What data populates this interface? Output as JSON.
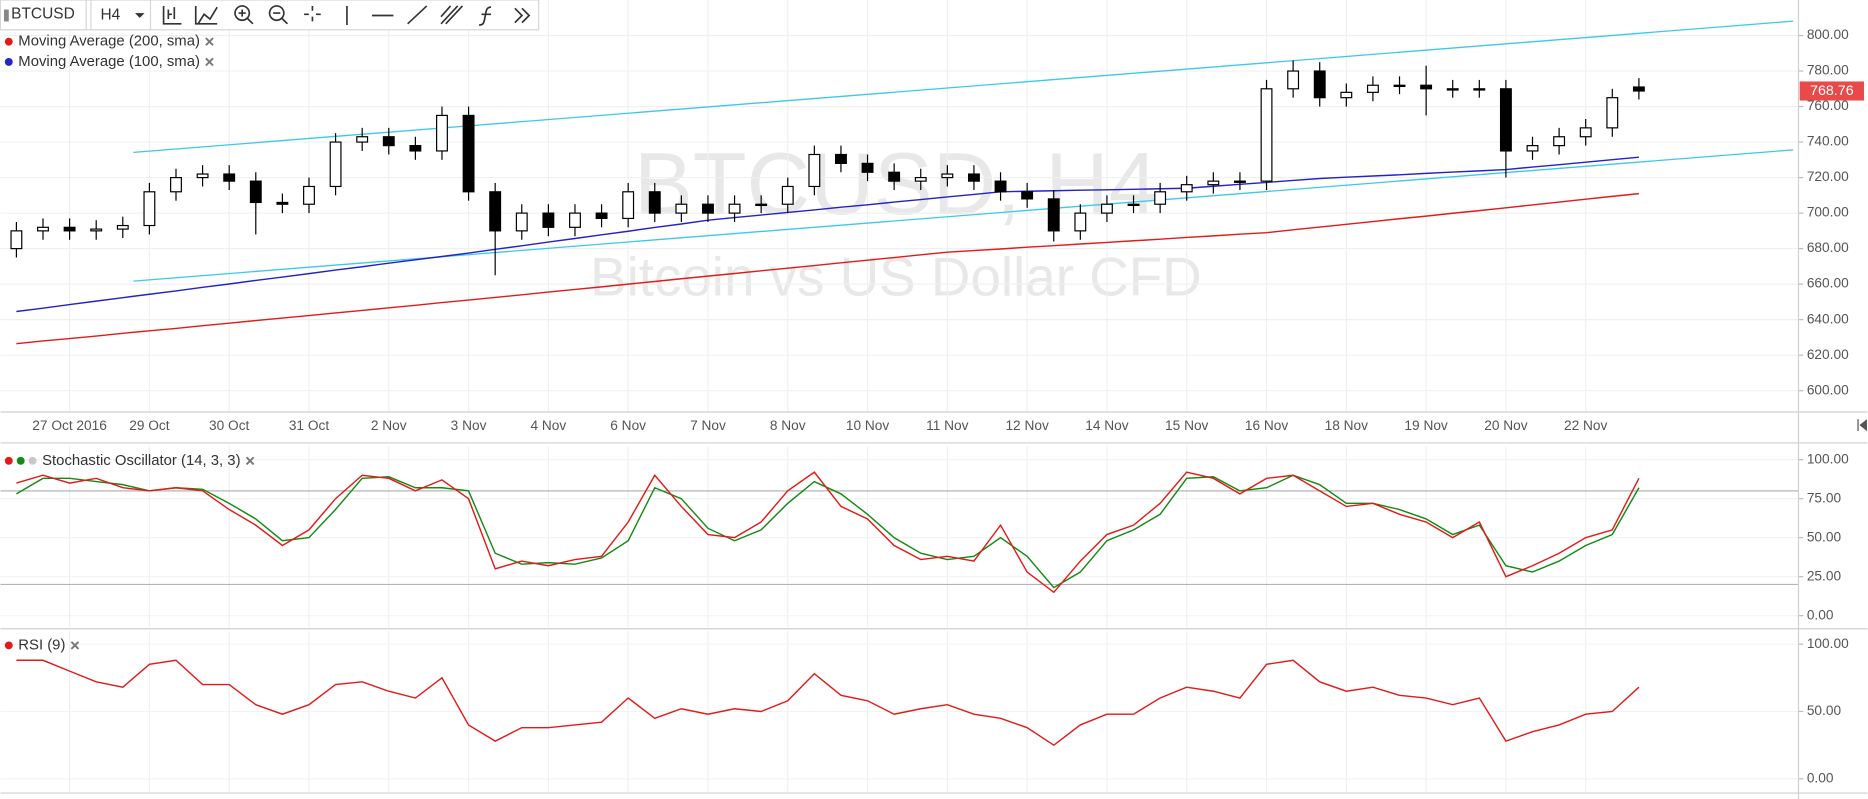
{
  "toolbar": {
    "symbol": "BTCUSD",
    "interval": "H4"
  },
  "chart_data": [
    {
      "type": "candlestick",
      "watermark": "BTCUSD, H4",
      "subtitle": "Bitcoin vs US Dollar CFD",
      "categories": [
        null,
        null,
        "27 Oct 2016",
        null,
        null,
        "29 Oct",
        null,
        null,
        "30 Oct",
        null,
        null,
        "31 Oct",
        null,
        null,
        "2 Nov",
        null,
        null,
        "3 Nov",
        null,
        null,
        "4 Nov",
        null,
        null,
        "6 Nov",
        null,
        null,
        "7 Nov",
        null,
        null,
        "8 Nov",
        null,
        null,
        "10 Nov",
        null,
        null,
        "11 Nov",
        null,
        null,
        "12 Nov",
        null,
        null,
        "14 Nov",
        null,
        null,
        "15 Nov",
        null,
        null,
        "16 Nov",
        null,
        null,
        "18 Nov",
        null,
        null,
        "19 Nov",
        null,
        null,
        "20 Nov",
        null,
        null,
        "22 Nov",
        null,
        null
      ],
      "open": [
        680,
        690,
        692,
        690,
        691,
        693,
        712,
        720,
        722,
        718,
        706,
        705,
        715,
        740,
        743,
        738,
        735,
        755,
        712,
        690,
        700,
        692,
        700,
        697,
        712,
        700,
        705,
        700,
        705,
        705,
        715,
        733,
        728,
        723,
        718,
        720,
        722,
        718,
        712,
        708,
        690,
        700,
        705,
        705,
        712,
        716,
        718,
        718,
        770,
        780,
        765,
        768,
        772,
        772,
        770,
        770,
        770,
        735,
        738,
        743,
        748,
        771
      ],
      "high": [
        695,
        697,
        697,
        696,
        698,
        717,
        725,
        727,
        727,
        723,
        711,
        720,
        745,
        748,
        748,
        743,
        760,
        760,
        717,
        705,
        705,
        705,
        705,
        717,
        717,
        710,
        710,
        710,
        710,
        720,
        738,
        738,
        733,
        728,
        725,
        727,
        727,
        723,
        717,
        713,
        705,
        710,
        710,
        717,
        721,
        723,
        723,
        775,
        786,
        785,
        773,
        777,
        777,
        783,
        775,
        775,
        775,
        743,
        748,
        753,
        770,
        776
      ],
      "low": [
        675,
        685,
        685,
        685,
        686,
        688,
        707,
        715,
        713,
        688,
        700,
        700,
        710,
        735,
        733,
        730,
        730,
        707,
        665,
        685,
        687,
        687,
        692,
        692,
        695,
        695,
        695,
        695,
        700,
        700,
        710,
        723,
        718,
        713,
        713,
        715,
        713,
        707,
        703,
        684,
        685,
        695,
        700,
        700,
        707,
        711,
        713,
        713,
        765,
        760,
        760,
        763,
        767,
        755,
        765,
        765,
        720,
        730,
        733,
        738,
        743,
        764
      ],
      "close": [
        690,
        692,
        690,
        691,
        693,
        712,
        720,
        722,
        718,
        706,
        705,
        715,
        740,
        743,
        738,
        735,
        755,
        712,
        690,
        700,
        692,
        700,
        697,
        712,
        700,
        705,
        700,
        705,
        705,
        715,
        733,
        728,
        723,
        718,
        720,
        722,
        718,
        712,
        708,
        690,
        700,
        705,
        705,
        712,
        716,
        718,
        718,
        770,
        780,
        765,
        768,
        772,
        772,
        770,
        770,
        770,
        735,
        738,
        743,
        748,
        765,
        768.76
      ],
      "up_color": "#ffffff",
      "down_color": "#000000",
      "series": [
        {
          "name": "Moving Average (200, sma)",
          "color": "#e31a1a",
          "values": [
            626.5,
            628,
            629.4,
            630.8,
            632.3,
            633.7,
            635.1,
            636.6,
            638,
            639.5,
            640.9,
            642.3,
            643.8,
            645.2,
            646.7,
            648.1,
            649.6,
            651,
            652.5,
            654,
            655.5,
            657,
            658.5,
            660,
            661.5,
            663,
            664.5,
            666,
            667.5,
            669,
            670.5,
            672,
            673.5,
            675,
            676.5,
            678,
            678.9,
            679.8,
            680.8,
            681.7,
            682.6,
            683.5,
            684.4,
            685.3,
            686.3,
            687.2,
            688.1,
            689,
            690.6,
            692.1,
            693.7,
            695.2,
            696.8,
            698.3,
            699.9,
            701.4,
            703,
            704.6,
            706.2,
            707.8,
            709.4,
            711
          ]
        },
        {
          "name": "Moving Average (100, sma)",
          "color": "#2323c8",
          "values": [
            644.6,
            646.5,
            648.5,
            650.4,
            652.4,
            654.3,
            656.2,
            658.2,
            660.1,
            662.1,
            664,
            665.9,
            667.9,
            669.8,
            671.8,
            673.7,
            675.6,
            677.5,
            679.6,
            681.6,
            683.7,
            685.7,
            687.8,
            689.8,
            691.9,
            693.9,
            696,
            697.5,
            698.9,
            700.4,
            701.8,
            703.3,
            704.7,
            706.2,
            707.6,
            709.1,
            710.5,
            712,
            712.3,
            712.6,
            712.9,
            713.1,
            713.4,
            713.7,
            714,
            715.1,
            716.2,
            717.3,
            718.4,
            719.5,
            720.2,
            720.9,
            721.6,
            722.4,
            723.1,
            723.8,
            724.5,
            725.9,
            727.3,
            728.7,
            730.1,
            731.5
          ]
        }
      ],
      "trendlines": [
        {
          "color": "#3cc8ec",
          "x": [
            4.4,
            66.8
          ],
          "y": [
            734.2,
            808.1
          ]
        },
        {
          "color": "#3cc8ec",
          "x": [
            4.4,
            66.8
          ],
          "y": [
            661.7,
            735.6
          ]
        }
      ],
      "xlim": [
        -0.6,
        67
      ],
      "ylim": [
        588,
        820
      ],
      "yticks": [
        {
          "value": 600,
          "label": "600.00"
        },
        {
          "value": 620,
          "label": "620.00"
        },
        {
          "value": 640,
          "label": "640.00"
        },
        {
          "value": 660,
          "label": "660.00"
        },
        {
          "value": 680,
          "label": "680.00"
        },
        {
          "value": 700,
          "label": "700.00"
        },
        {
          "value": 720,
          "label": "720.00"
        },
        {
          "value": 740,
          "label": "740.00"
        },
        {
          "value": 760,
          "label": "760.00"
        },
        {
          "value": 780,
          "label": "780.00"
        },
        {
          "value": 800,
          "label": "800.00"
        }
      ],
      "last_price": 768.76,
      "last_price_color": "#e84a4a",
      "grid": true
    },
    {
      "type": "line",
      "title": "Stochastic Oscillator (14, 3, 3)",
      "series": [
        {
          "color": "#e31a1a",
          "values": [
            85,
            90,
            85,
            88,
            82,
            80,
            82,
            80,
            68,
            58,
            45,
            55,
            75,
            90,
            88,
            80,
            87,
            75,
            30,
            35,
            32,
            36,
            38,
            60,
            90,
            70,
            52,
            50,
            60,
            80,
            92,
            70,
            62,
            45,
            36,
            38,
            35,
            58,
            28,
            15,
            35,
            52,
            58,
            72,
            92,
            88,
            78,
            88,
            90,
            80,
            70,
            72,
            65,
            60,
            50,
            60,
            25,
            32,
            40,
            50,
            55,
            88
          ]
        },
        {
          "color": "#138a13",
          "values": [
            78,
            88,
            88,
            86,
            84,
            80,
            82,
            81,
            72,
            62,
            48,
            50,
            68,
            88,
            89,
            82,
            82,
            80,
            40,
            33,
            34,
            33,
            37,
            48,
            82,
            75,
            56,
            48,
            55,
            72,
            86,
            78,
            65,
            50,
            40,
            36,
            38,
            50,
            38,
            18,
            28,
            48,
            55,
            65,
            88,
            89,
            80,
            82,
            90,
            84,
            72,
            72,
            68,
            62,
            52,
            58,
            32,
            28,
            35,
            45,
            52,
            82
          ]
        }
      ],
      "levels": [
        80,
        20
      ],
      "ylim": [
        -7.6,
        108.4
      ],
      "yticks": [
        {
          "value": 0,
          "label": "0.00"
        },
        {
          "value": 25,
          "label": "25.00"
        },
        {
          "value": 50,
          "label": "50.00"
        },
        {
          "value": 75,
          "label": "75.00"
        },
        {
          "value": 100,
          "label": "100.00"
        }
      ]
    },
    {
      "type": "line",
      "title": "RSI (9)",
      "series": [
        {
          "color": "#e31a1a",
          "values": [
            88,
            88,
            80,
            72,
            68,
            85,
            88,
            70,
            70,
            55,
            48,
            55,
            70,
            72,
            65,
            60,
            75,
            40,
            28,
            38,
            38,
            40,
            42,
            60,
            45,
            52,
            48,
            52,
            50,
            58,
            78,
            62,
            58,
            48,
            52,
            55,
            48,
            45,
            38,
            25,
            40,
            48,
            48,
            60,
            68,
            65,
            60,
            85,
            88,
            72,
            65,
            68,
            62,
            60,
            55,
            60,
            28,
            35,
            40,
            48,
            50,
            68
          ]
        }
      ],
      "ylim": [
        -9.7,
        109.7
      ],
      "yticks": [
        {
          "value": 0,
          "label": "0.00"
        },
        {
          "value": 50,
          "label": "50.00"
        },
        {
          "value": 100,
          "label": "100.00"
        }
      ]
    }
  ]
}
